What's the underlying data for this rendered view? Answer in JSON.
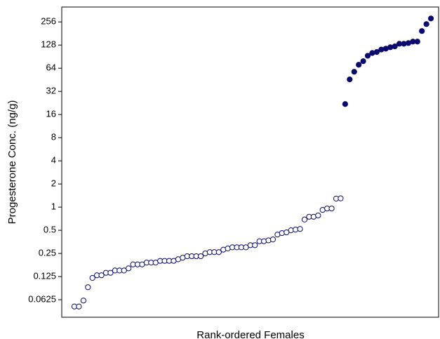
{
  "chart_data": {
    "type": "scatter",
    "ylabel": "Progesterone Conc. (ng/g)",
    "xlabel": "Rank-ordered Females",
    "yscale": "log2",
    "xlim": [
      -1.8,
      81.7
    ],
    "ylim": [
      0.037,
      400
    ],
    "yticks": [
      0.0625,
      0.125,
      0.25,
      0.5,
      1,
      2,
      4,
      8,
      16,
      32,
      64,
      128,
      256
    ],
    "series": [
      {
        "color": "#0a0a6e",
        "marker": "open",
        "x": [
          1,
          2,
          3,
          4,
          5,
          6,
          7,
          8,
          9,
          10,
          11,
          12,
          13,
          14,
          15,
          16,
          17,
          18,
          19,
          20,
          21,
          22,
          23,
          24,
          25,
          26,
          27,
          28,
          29,
          30,
          31,
          32,
          33,
          34,
          35,
          36,
          37,
          38,
          39,
          40,
          41,
          42,
          43,
          44,
          45,
          46,
          47,
          48,
          49,
          50,
          51,
          52,
          53,
          54,
          55,
          56,
          57,
          58,
          59,
          60
        ],
        "values": [
          0.051,
          0.051,
          0.061,
          0.091,
          0.12,
          0.13,
          0.13,
          0.14,
          0.14,
          0.15,
          0.15,
          0.15,
          0.16,
          0.18,
          0.18,
          0.18,
          0.19,
          0.19,
          0.19,
          0.2,
          0.2,
          0.2,
          0.2,
          0.21,
          0.22,
          0.23,
          0.23,
          0.23,
          0.23,
          0.25,
          0.26,
          0.26,
          0.26,
          0.28,
          0.29,
          0.3,
          0.3,
          0.3,
          0.3,
          0.32,
          0.32,
          0.36,
          0.36,
          0.37,
          0.38,
          0.44,
          0.46,
          0.47,
          0.5,
          0.51,
          0.52,
          0.69,
          0.75,
          0.75,
          0.78,
          0.92,
          0.96,
          0.96,
          1.29,
          1.3
        ]
      },
      {
        "color": "#0a0a6e",
        "marker": "filled",
        "x": [
          61,
          62,
          63,
          64,
          65,
          66,
          67,
          68,
          69,
          70,
          71,
          72,
          73,
          74,
          75,
          76,
          77,
          78,
          79,
          80
        ],
        "values": [
          21.9,
          45.8,
          57.6,
          71,
          79,
          93,
          101,
          104,
          112,
          115,
          120,
          123,
          133,
          133,
          136,
          142,
          142,
          195,
          240,
          284
        ]
      }
    ]
  }
}
